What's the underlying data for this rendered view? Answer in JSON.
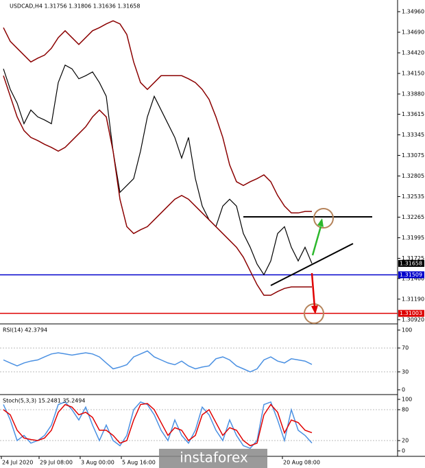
{
  "chart_data": [
    {
      "type": "line",
      "title": "USDCAD,H4 1.31756 1.31806 1.31636 1.31658",
      "ylim": [
        1.30883,
        1.35086
      ],
      "yticks": [
        {
          "value": 1.3496,
          "label": "1.34960"
        },
        {
          "value": 1.3469,
          "label": "1.34690"
        },
        {
          "value": 1.3442,
          "label": "1.34420"
        },
        {
          "value": 1.3415,
          "label": "1.34150"
        },
        {
          "value": 1.3388,
          "label": "1.33880"
        },
        {
          "value": 1.33615,
          "label": "1.33615"
        },
        {
          "value": 1.33345,
          "label": "1.33345"
        },
        {
          "value": 1.33075,
          "label": "1.33075"
        },
        {
          "value": 1.32805,
          "label": "1.32805"
        },
        {
          "value": 1.32535,
          "label": "1.32535"
        },
        {
          "value": 1.32265,
          "label": "1.32265"
        },
        {
          "value": 1.31995,
          "label": "1.31995"
        },
        {
          "value": 1.31725,
          "label": "1.31725"
        },
        {
          "value": 1.3146,
          "label": "1.31460"
        },
        {
          "value": 1.3119,
          "label": "1.31190"
        },
        {
          "value": 1.3092,
          "label": "1.30920"
        }
      ],
      "xlim": [
        0,
        45
      ],
      "xticks": [
        {
          "value": 0,
          "label": "24 Jul 2020"
        },
        {
          "value": 5.5,
          "label": "29 Jul 08:00"
        },
        {
          "value": 11.5,
          "label": "3 Aug 00:00"
        },
        {
          "value": 17.5,
          "label": "5 Aug 16:00"
        },
        {
          "value": 41,
          "label": "20 Aug 08:00"
        }
      ],
      "series": [
        {
          "name": "USDCAD",
          "color": "#000000",
          "values": [
            1.3421,
            1.3394,
            1.3376,
            1.3349,
            1.3367,
            1.3358,
            1.3354,
            1.3349,
            1.3403,
            1.3426,
            1.3421,
            1.3408,
            1.3412,
            1.3417,
            1.3403,
            1.3385,
            1.3313,
            1.3259,
            1.3268,
            1.3277,
            1.3313,
            1.3358,
            1.3385,
            1.3367,
            1.3349,
            1.3331,
            1.3304,
            1.3331,
            1.3277,
            1.3241,
            1.3223,
            1.3214,
            1.3241,
            1.325,
            1.3241,
            1.3205,
            1.3187,
            1.3165,
            1.3151,
            1.3169,
            1.3205,
            1.3214,
            1.3187,
            1.3169,
            1.3187,
            1.31658
          ]
        },
        {
          "name": "Upper band",
          "color": "#8b0000",
          "values": [
            1.3475,
            1.3457,
            1.3448,
            1.3439,
            1.343,
            1.3435,
            1.3439,
            1.3448,
            1.3462,
            1.3471,
            1.3462,
            1.3453,
            1.3462,
            1.3471,
            1.3475,
            1.348,
            1.3484,
            1.348,
            1.3466,
            1.343,
            1.3403,
            1.3394,
            1.3403,
            1.3412,
            1.3412,
            1.3412,
            1.3412,
            1.3408,
            1.3403,
            1.3394,
            1.3381,
            1.3358,
            1.3331,
            1.3295,
            1.3273,
            1.3268,
            1.3273,
            1.3277,
            1.3282,
            1.3273,
            1.3255,
            1.3241,
            1.3232,
            1.3232,
            1.3234,
            1.3234
          ]
        },
        {
          "name": "Lower band",
          "color": "#8b0000",
          "values": [
            1.3412,
            1.3385,
            1.3358,
            1.334,
            1.3331,
            1.3327,
            1.3322,
            1.3318,
            1.3313,
            1.3318,
            1.3327,
            1.3336,
            1.3345,
            1.3358,
            1.3367,
            1.3358,
            1.3313,
            1.325,
            1.3214,
            1.3205,
            1.321,
            1.3214,
            1.3223,
            1.3232,
            1.3241,
            1.325,
            1.3255,
            1.325,
            1.3241,
            1.3232,
            1.3223,
            1.3214,
            1.3205,
            1.3196,
            1.3187,
            1.3174,
            1.3156,
            1.3138,
            1.3124,
            1.3124,
            1.3129,
            1.3133,
            1.3135,
            1.3135,
            1.3135,
            1.3135
          ]
        }
      ],
      "levels": [
        {
          "value": 1.31658,
          "label": "1.31658",
          "color": "#000000"
        },
        {
          "value": 1.31509,
          "label": "1.31509",
          "color": "#0000cc"
        },
        {
          "value": 1.31003,
          "label": "1.31003",
          "color": "#dd0000"
        }
      ],
      "watermark": "instaforex"
    },
    {
      "type": "line",
      "title": "RSI(14) 42.3794",
      "ylim": [
        0,
        100
      ],
      "yticks": [
        0,
        30,
        70,
        100
      ],
      "xlim": [
        0,
        45
      ],
      "series": [
        {
          "name": "RSI",
          "color": "#4a90e2",
          "values": [
            50,
            45,
            40,
            45,
            48,
            50,
            55,
            60,
            62,
            60,
            58,
            60,
            62,
            60,
            55,
            45,
            35,
            38,
            42,
            55,
            60,
            65,
            55,
            50,
            45,
            42,
            48,
            40,
            35,
            38,
            40,
            52,
            55,
            50,
            40,
            35,
            30,
            35,
            50,
            55,
            48,
            45,
            52,
            50,
            48,
            42.3794
          ]
        }
      ]
    },
    {
      "type": "line",
      "title": "Stoch(5,3,3) 15.2481 35.2494",
      "ylim": [
        0,
        100
      ],
      "yticks": [
        0,
        20,
        80,
        100
      ],
      "xlim": [
        0,
        45
      ],
      "series": [
        {
          "name": "Main",
          "color": "#4a90e2",
          "values": [
            90,
            60,
            20,
            30,
            15,
            20,
            30,
            50,
            90,
            95,
            80,
            60,
            85,
            50,
            20,
            50,
            20,
            10,
            30,
            80,
            95,
            90,
            70,
            40,
            20,
            60,
            30,
            15,
            40,
            85,
            70,
            40,
            20,
            60,
            30,
            10,
            5,
            20,
            90,
            95,
            60,
            20,
            80,
            40,
            30,
            15.2481
          ]
        },
        {
          "name": "Signal",
          "color": "#e00000",
          "values": [
            80,
            70,
            40,
            25,
            22,
            20,
            25,
            40,
            75,
            90,
            85,
            70,
            75,
            65,
            40,
            40,
            30,
            15,
            20,
            60,
            90,
            92,
            80,
            55,
            30,
            45,
            40,
            20,
            30,
            70,
            80,
            55,
            30,
            45,
            40,
            20,
            10,
            15,
            70,
            90,
            75,
            35,
            60,
            55,
            40,
            35.2494
          ]
        }
      ]
    }
  ]
}
